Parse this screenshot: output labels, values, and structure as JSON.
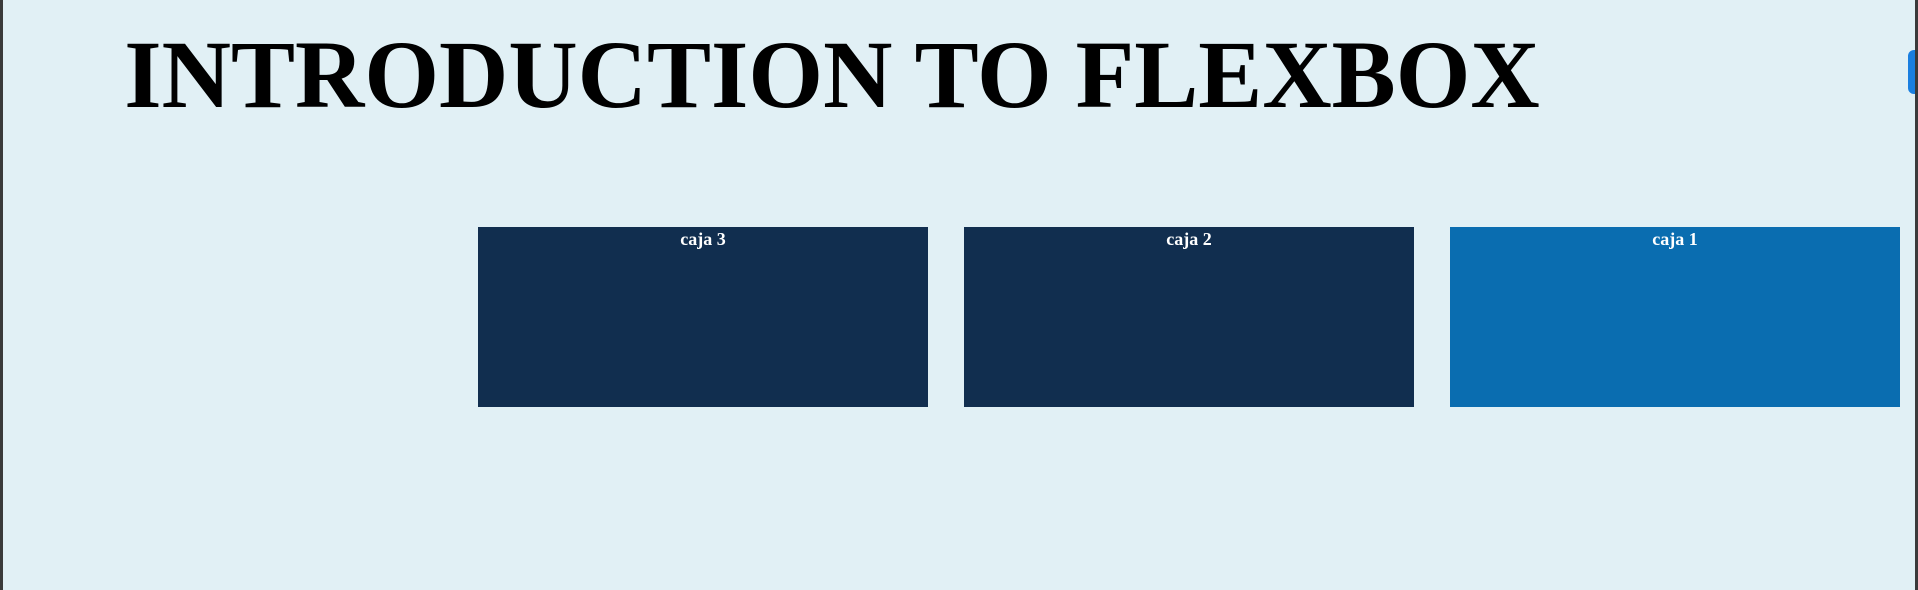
{
  "page": {
    "title": "INTRODUCTION TO FLEXBOX"
  },
  "boxes": [
    {
      "label": "caja 3",
      "color": "#112e4f"
    },
    {
      "label": "caja 2",
      "color": "#112e4f"
    },
    {
      "label": "caja 1",
      "color": "#0a6db0"
    }
  ],
  "colors": {
    "background": "#e1f0f5",
    "title": "#000000",
    "box_text": "#ffffff",
    "scroll_handle": "#1a7fe0"
  }
}
